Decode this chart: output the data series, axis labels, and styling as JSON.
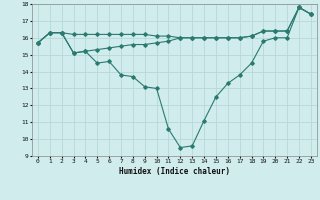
{
  "x": [
    0,
    1,
    2,
    3,
    4,
    5,
    6,
    7,
    8,
    9,
    10,
    11,
    12,
    13,
    14,
    15,
    16,
    17,
    18,
    19,
    20,
    21,
    22,
    23
  ],
  "line1": [
    15.7,
    16.3,
    16.3,
    15.1,
    15.2,
    14.5,
    14.6,
    13.8,
    13.7,
    13.1,
    13.0,
    10.6,
    9.5,
    9.6,
    11.1,
    12.5,
    13.3,
    13.8,
    14.5,
    15.8,
    16.0,
    16.0,
    17.8,
    17.4
  ],
  "line2": [
    15.7,
    16.3,
    16.3,
    16.2,
    16.2,
    16.2,
    16.2,
    16.2,
    16.2,
    16.2,
    16.1,
    16.1,
    16.0,
    16.0,
    16.0,
    16.0,
    16.0,
    16.0,
    16.1,
    16.4,
    16.4,
    16.4,
    17.8,
    17.4
  ],
  "line3": [
    15.7,
    16.3,
    16.3,
    15.1,
    15.2,
    15.3,
    15.4,
    15.5,
    15.6,
    15.6,
    15.7,
    15.8,
    16.0,
    16.0,
    16.0,
    16.0,
    16.0,
    16.0,
    16.1,
    16.4,
    16.4,
    16.4,
    17.8,
    17.4
  ],
  "color": "#2a7a6f",
  "bg_color": "#d0ecec",
  "grid_color": "#b8d8d8",
  "xlabel": "Humidex (Indice chaleur)",
  "ylim": [
    9,
    18
  ],
  "xlim": [
    -0.5,
    23.5
  ],
  "yticks": [
    9,
    10,
    11,
    12,
    13,
    14,
    15,
    16,
    17,
    18
  ],
  "xticks": [
    0,
    1,
    2,
    3,
    4,
    5,
    6,
    7,
    8,
    9,
    10,
    11,
    12,
    13,
    14,
    15,
    16,
    17,
    18,
    19,
    20,
    21,
    22,
    23
  ]
}
